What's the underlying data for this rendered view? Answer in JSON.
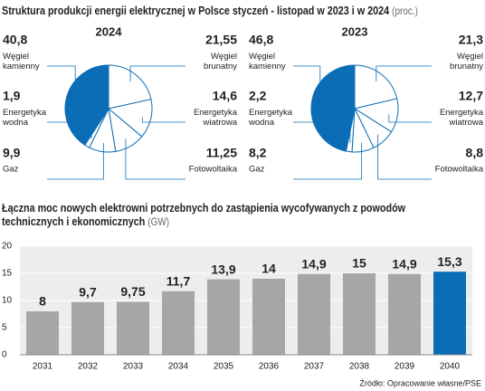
{
  "header": {
    "title": "Struktura produkcji energii elektrycznej w Polsce styczeń - listopad w 2023 i w 2024",
    "unit": "(proc.)"
  },
  "chart_data": [
    {
      "type": "pie",
      "title": "2024",
      "categories": [
        "Węgiel brunatny",
        "Energetyka wiatrowa",
        "Fotowoltaika",
        "Gaz",
        "Energetyka wodna",
        "Węgiel kamienny"
      ],
      "values": [
        21.55,
        14.6,
        11.25,
        9.9,
        1.9,
        40.8
      ],
      "value_labels": [
        "21,55",
        "14,6",
        "11,25",
        "9,9",
        "1,9",
        "40,8"
      ],
      "colors": [
        "#ffffff",
        "#ffffff",
        "#ffffff",
        "#ffffff",
        "#ffffff",
        "#0b6db5"
      ]
    },
    {
      "type": "pie",
      "title": "2023",
      "categories": [
        "Węgiel brunatny",
        "Energetyka wiatrowa",
        "Fotowoltaika",
        "Gaz",
        "Energetyka wodna",
        "Węgiel kamienny"
      ],
      "values": [
        21.3,
        12.7,
        8.8,
        8.2,
        2.2,
        46.8
      ],
      "value_labels": [
        "21,3",
        "12,7",
        "8,8",
        "8,2",
        "2,2",
        "46,8"
      ],
      "colors": [
        "#ffffff",
        "#ffffff",
        "#ffffff",
        "#ffffff",
        "#ffffff",
        "#0b6db5"
      ]
    },
    {
      "type": "bar",
      "title": "Łączna moc nowych elektrowni potrzebnych do zastąpienia wycofywanych z powodów technicznych i ekonomicznych",
      "unit": "(GW)",
      "categories": [
        "2031",
        "2032",
        "2033",
        "2034",
        "2035",
        "2036",
        "2037",
        "2038",
        "2039",
        "2040"
      ],
      "values": [
        8,
        9.7,
        9.75,
        11.7,
        13.9,
        14,
        14.9,
        15,
        14.9,
        15.3
      ],
      "value_labels": [
        "8",
        "9,7",
        "9,75",
        "11,7",
        "13,9",
        "14",
        "14,9",
        "15",
        "14,9",
        "15,3"
      ],
      "colors": [
        "#a6a6a6",
        "#a6a6a6",
        "#a6a6a6",
        "#a6a6a6",
        "#a6a6a6",
        "#a6a6a6",
        "#a6a6a6",
        "#a6a6a6",
        "#a6a6a6",
        "#0b6db5"
      ],
      "ylim": [
        0,
        20
      ],
      "yticks": [
        0,
        5,
        10,
        15,
        20
      ],
      "grid": true
    }
  ],
  "source": "Źródło: Opracowanie własne/PSE"
}
